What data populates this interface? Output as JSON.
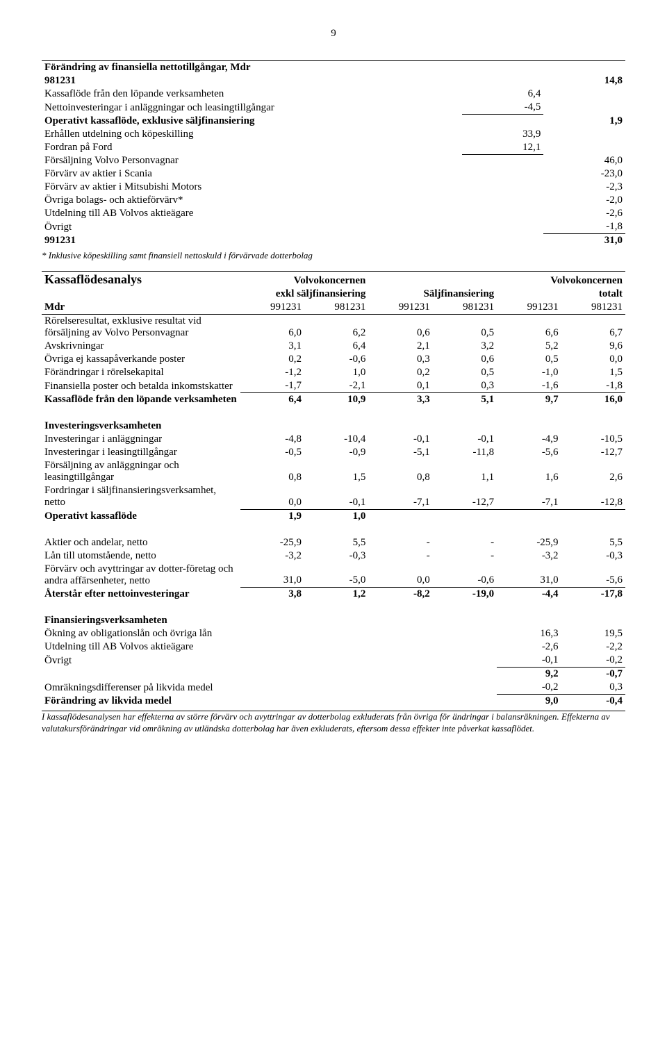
{
  "page_number": "9",
  "table1": {
    "title": "Förändring av finansiella nettotillgångar, Mdr",
    "rows": [
      {
        "label": "981231",
        "v1": "",
        "v2": "14,8",
        "bold": true
      },
      {
        "label": "Kassaflöde från den löpande verksamheten",
        "v1": "6,4",
        "v2": ""
      },
      {
        "label": "Nettoinvesteringar i anläggningar och leasingtillgångar",
        "v1": "-4,5",
        "v2": "",
        "underline_v1": true
      },
      {
        "label": "Operativt kassaflöde, exklusive säljfinansiering",
        "v1": "",
        "v2": "1,9",
        "bold": true
      },
      {
        "label": "Erhållen utdelning och köpeskilling",
        "v1": "33,9",
        "v2": ""
      },
      {
        "label": "Fordran på Ford",
        "v1": "12,1",
        "v2": "",
        "underline_v1": true
      },
      {
        "label": "Försäljning Volvo Personvagnar",
        "v1": "",
        "v2": "46,0"
      },
      {
        "label": "Förvärv av aktier i Scania",
        "v1": "",
        "v2": "-23,0"
      },
      {
        "label": "Förvärv av aktier i Mitsubishi Motors",
        "v1": "",
        "v2": "-2,3"
      },
      {
        "label": "Övriga bolags- och aktieförvärv*",
        "v1": "",
        "v2": "-2,0"
      },
      {
        "label": "Utdelning till AB Volvos aktieägare",
        "v1": "",
        "v2": "-2,6"
      },
      {
        "label": "Övrigt",
        "v1": "",
        "v2": "-1,8",
        "underline_v2": true
      },
      {
        "label": "991231",
        "v1": "",
        "v2": "31,0",
        "bold": true
      }
    ],
    "footnote": "* Inklusive köpeskilling samt finansiell nettoskuld i  förvärvade dotterbolag"
  },
  "table2": {
    "title": "Kassaflödesanalys",
    "header_groups": {
      "g1": "Volvokoncernen",
      "g1b": "exkl säljfinansiering",
      "g2": "Säljfinansiering",
      "g3": "Volvokoncernen",
      "g3b": "totalt"
    },
    "mdr_label": "Mdr",
    "col_labels": [
      "991231",
      "981231",
      "991231",
      "981231",
      "991231",
      "981231"
    ],
    "rows": [
      {
        "label": "Rörelseresultat, exklusive resultat vid försäljning av Volvo Personvagnar",
        "v": [
          "6,0",
          "6,2",
          "0,6",
          "0,5",
          "6,6",
          "6,7"
        ]
      },
      {
        "label": "Avskrivningar",
        "v": [
          "3,1",
          "6,4",
          "2,1",
          "3,2",
          "5,2",
          "9,6"
        ]
      },
      {
        "label": "Övriga ej kassapåverkande poster",
        "v": [
          "0,2",
          "-0,6",
          "0,3",
          "0,6",
          "0,5",
          "0,0"
        ]
      },
      {
        "label": "Förändringar i rörelsekapital",
        "v": [
          "-1,2",
          "1,0",
          "0,2",
          "0,5",
          "-1,0",
          "1,5"
        ]
      },
      {
        "label": "Finansiella poster och betalda inkomstskatter",
        "v": [
          "-1,7",
          "-2,1",
          "0,1",
          "0,3",
          "-1,6",
          "-1,8"
        ],
        "underline": true
      },
      {
        "label": "Kassaflöde från den löpande verksamheten",
        "v": [
          "6,4",
          "10,9",
          "3,3",
          "5,1",
          "9,7",
          "16,0"
        ],
        "bold": true
      }
    ],
    "sec_invest_title": "Investeringsverksamheten",
    "rows_invest": [
      {
        "label": "Investeringar i anläggningar",
        "v": [
          "-4,8",
          "-10,4",
          "-0,1",
          "-0,1",
          "-4,9",
          "-10,5"
        ]
      },
      {
        "label": "Investeringar i leasingtillgångar",
        "v": [
          "-0,5",
          "-0,9",
          "-5,1",
          "-11,8",
          "-5,6",
          "-12,7"
        ]
      },
      {
        "label": "Försäljning av anläggningar och leasingtillgångar",
        "v": [
          "0,8",
          "1,5",
          "0,8",
          "1,1",
          "1,6",
          "2,6"
        ]
      },
      {
        "label": "Fordringar i säljfinansieringsverksamhet, netto",
        "v": [
          "0,0",
          "-0,1",
          "-7,1",
          "-12,7",
          "-7,1",
          "-12,8"
        ],
        "underline": true
      },
      {
        "label": "Operativt kassaflöde",
        "v": [
          "1,9",
          "1,0",
          "",
          "",
          "",
          ""
        ],
        "bold": true
      }
    ],
    "rows_shares": [
      {
        "label": "Aktier och andelar, netto",
        "v": [
          "-25,9",
          "5,5",
          "-",
          "-",
          "-25,9",
          "5,5"
        ]
      },
      {
        "label": "Lån till utomstående, netto",
        "v": [
          "-3,2",
          "-0,3",
          "-",
          "-",
          "-3,2",
          "-0,3"
        ]
      },
      {
        "label": "Förvärv och avyttringar av dotter-företag och andra affärsenheter, netto",
        "v": [
          "31,0",
          "-5,0",
          "0,0",
          "-0,6",
          "31,0",
          "-5,6"
        ],
        "underline": true
      },
      {
        "label": "Återstår efter nettoinvesteringar",
        "v": [
          "3,8",
          "1,2",
          "-8,2",
          "-19,0",
          "-4,4",
          "-17,8"
        ],
        "bold": true
      }
    ],
    "sec_fin_title": "Finansieringsverksamheten",
    "rows_fin": [
      {
        "label": "Ökning av obligationslån och övriga lån",
        "v": [
          "",
          "",
          "",
          "",
          "16,3",
          "19,5"
        ]
      },
      {
        "label": "Utdelning till AB Volvos aktieägare",
        "v": [
          "",
          "",
          "",
          "",
          "-2,6",
          "-2,2"
        ]
      },
      {
        "label": "Övrigt",
        "v": [
          "",
          "",
          "",
          "",
          "-0,1",
          "-0,2"
        ],
        "underline56": true
      },
      {
        "label": "",
        "v": [
          "",
          "",
          "",
          "",
          "9,2",
          "-0,7"
        ],
        "bold": true
      },
      {
        "label": "Omräkningsdifferenser på likvida medel",
        "v": [
          "",
          "",
          "",
          "",
          "-0,2",
          "0,3"
        ],
        "underline56": true
      },
      {
        "label": "Förändring av likvida medel",
        "v": [
          "",
          "",
          "",
          "",
          "9,0",
          "-0,4"
        ],
        "bold": true
      }
    ],
    "footnote": "I kassaflödesanalysen har effekterna av större förvärv och avyttringar av dotterbolag exkluderats från övriga för ändringar i balansräkningen. Effekterna av valutakursförändringar vid omräkning av utländska dotterbolag har även exkluderats, eftersom dessa effekter inte påverkat kassaflödet."
  }
}
